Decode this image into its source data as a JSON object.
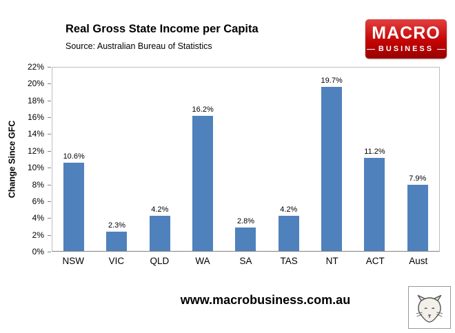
{
  "header": {
    "title": "Real Gross State Income per Capita",
    "source": "Source: Australian Bureau of Statistics"
  },
  "logo": {
    "line1": "MACRO",
    "line2": "BUSINESS",
    "bg_color": "#c40404"
  },
  "chart_data": {
    "type": "bar",
    "title": "Real Gross State Income per Capita",
    "subtitle": "Source: Australian Bureau of Statistics",
    "categories": [
      "NSW",
      "VIC",
      "QLD",
      "WA",
      "SA",
      "TAS",
      "NT",
      "ACT",
      "Aust"
    ],
    "values": [
      10.6,
      2.3,
      4.2,
      16.2,
      2.8,
      4.2,
      19.7,
      11.2,
      7.9
    ],
    "value_labels": [
      "10.6%",
      "2.3%",
      "4.2%",
      "16.2%",
      "2.8%",
      "4.2%",
      "19.7%",
      "11.2%",
      "7.9%"
    ],
    "xlabel": "",
    "ylabel": "Change Since GFC",
    "ylim": [
      0,
      22
    ],
    "ytick_step": 2,
    "ytick_suffix": "%",
    "grid": false,
    "legend": "none",
    "bar_color": "#4F81BD"
  },
  "footer": {
    "url": "www.macrobusiness.com.au",
    "fox_icon": "fox-sketch"
  }
}
